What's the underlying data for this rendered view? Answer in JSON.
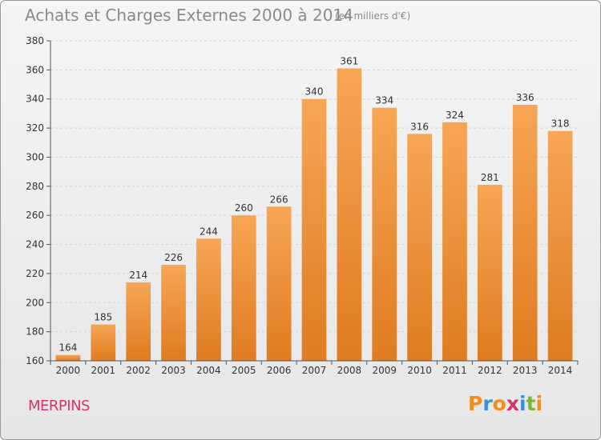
{
  "header": {
    "title": "Achats et Charges Externes 2000 à 2014",
    "subtitle": "(en milliers d'€)"
  },
  "footer": {
    "commune": "MERPINS",
    "logo_text": "Proxiti",
    "logo_colors": [
      "#f28c1e",
      "#3a8fd6",
      "#f28c1e",
      "#d6336c",
      "#3a8fd6",
      "#7cb82f",
      "#f28c1e"
    ]
  },
  "colors": {
    "bar_light": "#f7a655",
    "bar_dark": "#e07b20",
    "grid": "#d5d5d5",
    "axis": "#555555",
    "text": "#333333"
  },
  "chart_data": {
    "type": "bar",
    "categories": [
      "2000",
      "2001",
      "2002",
      "2003",
      "2004",
      "2005",
      "2006",
      "2007",
      "2008",
      "2009",
      "2010",
      "2011",
      "2012",
      "2013",
      "2014"
    ],
    "values": [
      164,
      185,
      214,
      226,
      244,
      260,
      266,
      340,
      361,
      334,
      316,
      324,
      281,
      336,
      318
    ],
    "ylim": [
      160,
      380
    ],
    "yticks": [
      160,
      180,
      200,
      220,
      240,
      260,
      280,
      300,
      320,
      340,
      360,
      380
    ],
    "grid": true,
    "xlabel": "",
    "ylabel": ""
  }
}
